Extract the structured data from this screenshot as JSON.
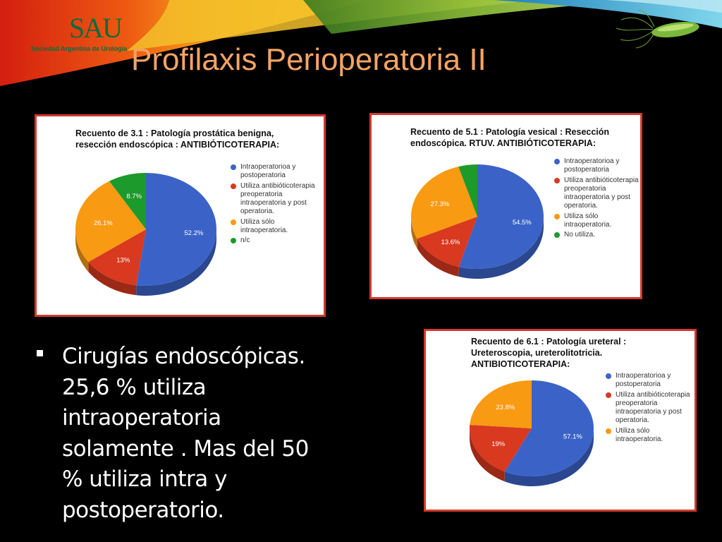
{
  "slide": {
    "title": "Profilaxis Perioperatoria II",
    "logo": {
      "mark": "SAU",
      "subtitle": "Sociedad Argentina de Urología",
      "icon": "sau-logo-icon"
    },
    "decoration_icon": "bacteria-icon",
    "bullet": "Cirugías endoscópicas. 25,6 % utiliza intraoperatoria solamente . Mas del 50 % utiliza intra y postoperatorio."
  },
  "colors": {
    "blue": "#3b63c7",
    "red": "#d8391f",
    "orange": "#f89a12",
    "green": "#1c9a2c",
    "border": "#d23a30",
    "title": "#f4a464"
  },
  "chart_data": [
    {
      "type": "pie",
      "title": "Recuento de 3.1 : Patología prostática benigna, resección endoscópica : ANTIBIÓTICOTERAPIA:",
      "legend": "right",
      "series": [
        {
          "name": "Intraoperatorioa y postoperatoria",
          "value": 52.2,
          "label": "52.2%",
          "color": "#3b63c7"
        },
        {
          "name": "Utiliza antibióticoterapia preoperatoria intraoperatoria y post operatoria.",
          "value": 13.0,
          "label": "13%",
          "color": "#d8391f"
        },
        {
          "name": "Utiliza sólo intraoperatoria.",
          "value": 26.1,
          "label": "26.1%",
          "color": "#f89a12"
        },
        {
          "name": "n/c",
          "value": 8.7,
          "label": "8.7%",
          "color": "#1c9a2c"
        }
      ]
    },
    {
      "type": "pie",
      "title": "Recuento de 5.1 : Patología vesical : Resección endoscópica. RTUV. ANTIBIÓTICOTERAPIA:",
      "legend": "right",
      "series": [
        {
          "name": "Intraoperatorioa y postoperatoria",
          "value": 54.5,
          "label": "54.5%",
          "color": "#3b63c7"
        },
        {
          "name": "Utiliza antibióticoterapia preoperatoria intraoperatoria y post operatoria.",
          "value": 13.6,
          "label": "13.6%",
          "color": "#d8391f"
        },
        {
          "name": "Utiliza sólo intraoperatoria.",
          "value": 27.3,
          "label": "27.3%",
          "color": "#f89a12"
        },
        {
          "name": "No utiliza.",
          "value": 4.6,
          "label": "",
          "color": "#1c9a2c"
        }
      ]
    },
    {
      "type": "pie",
      "title": "Recuento de 6.1 : Patología ureteral : Ureteroscopia, ureterolitotricia. ANTIBIOTICOTERAPIA:",
      "legend": "right",
      "series": [
        {
          "name": "Intraoperatorioa y postoperatoria",
          "value": 57.1,
          "label": "57.1%",
          "color": "#3b63c7"
        },
        {
          "name": "Utiliza antibióticoterapia preoperatoria intraoperatoria y post operatoria.",
          "value": 19.0,
          "label": "19%",
          "color": "#d8391f"
        },
        {
          "name": "Utiliza sólo intraoperatoria.",
          "value": 23.8,
          "label": "23.8%",
          "color": "#f89a12"
        }
      ]
    }
  ]
}
